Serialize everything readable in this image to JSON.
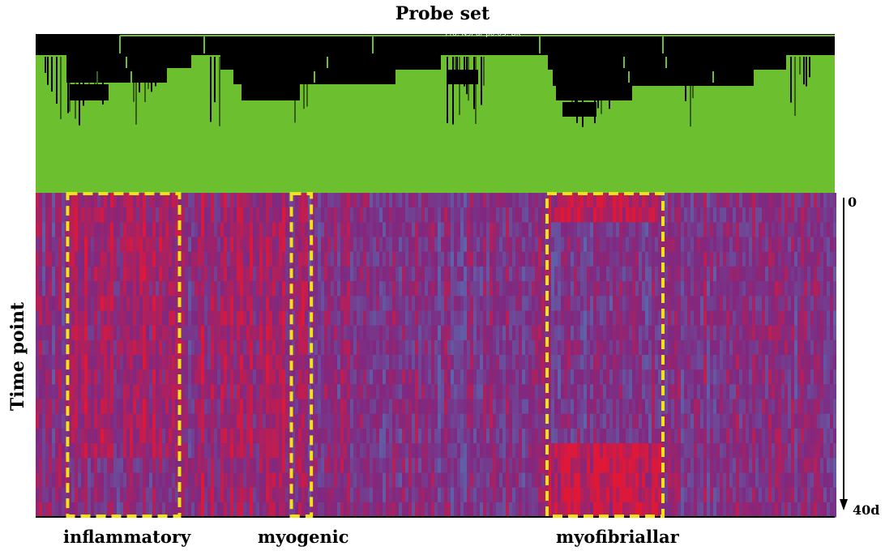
{
  "chart_data": {
    "type": "heatmap",
    "xlabel": "Probe set",
    "ylabel": "Time point",
    "y_ticks": [
      "0",
      "40d"
    ],
    "dendrogram_caption": "Pro: Nsf ar p0.05. BK",
    "clusters": [
      {
        "name": "inflammatory",
        "x_range": [
          0.04,
          0.18
        ]
      },
      {
        "name": "myogenic",
        "x_range": [
          0.32,
          0.345
        ]
      },
      {
        "name": "myofibriallar",
        "x_range": [
          0.64,
          0.785
        ]
      }
    ],
    "colors": {
      "high": "#e01838",
      "mid": "#802880",
      "low": "#5a6ab0",
      "dendrogram_bg": "#6cbf2e",
      "dendrogram_branch": "#000000",
      "highlight": "#f2e21a"
    }
  }
}
